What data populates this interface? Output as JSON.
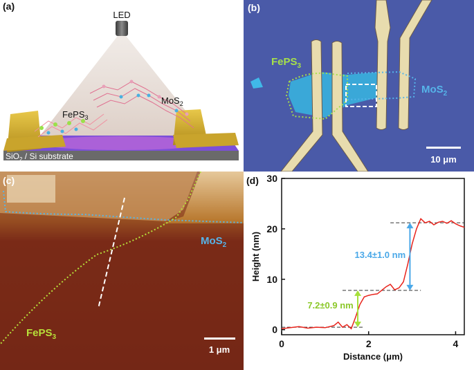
{
  "panel_a": {
    "label": "(a)",
    "led_label": "LED",
    "fepS3_prefix": "FePS",
    "fepS3_sub": "3",
    "mos2_prefix": "MoS",
    "mos2_sub": "2",
    "substrate_prefix": "SiO",
    "substrate_sub": "2",
    "substrate_suffix": " / Si substrate"
  },
  "panel_b": {
    "label": "(b)",
    "fepS3_prefix": "FePS",
    "fepS3_sub": "3",
    "mos2_prefix": "MoS",
    "mos2_sub": "2",
    "scale_label": "10 μm",
    "colors": {
      "background": "#4a5aa8",
      "electrode": "#e8dcae",
      "fepS3_outline": "#a6e04a",
      "mos2_outline": "#56b4e9"
    }
  },
  "panel_c": {
    "label": "(c)",
    "mos2_prefix": "MoS",
    "mos2_sub": "2",
    "fepS3_prefix": "FePS",
    "fepS3_sub": "3",
    "scale_label": "1 μm"
  },
  "panel_d": {
    "label": "(d)",
    "xlabel": "Distance (μm)",
    "ylabel": "Height (nm)",
    "annotation_upper": "13.4±1.0 nm",
    "annotation_lower": "7.2±0.9 nm",
    "colors": {
      "line": "#e8231b",
      "upper_arrow": "#4aa8e8",
      "lower_arrow": "#a6e03a"
    }
  },
  "chart_data": {
    "type": "line",
    "xlabel": "Distance (μm)",
    "ylabel": "Height (nm)",
    "xlim": [
      0,
      4.2
    ],
    "ylim": [
      -1,
      30
    ],
    "xticks": [
      0,
      2,
      4
    ],
    "yticks": [
      0,
      10,
      20,
      30
    ],
    "series": [
      {
        "x": [
          0,
          0.2,
          0.4,
          0.6,
          0.8,
          1.0,
          1.2,
          1.3,
          1.4,
          1.5,
          1.6,
          1.7,
          1.8,
          1.9,
          2.0,
          2.1,
          2.2,
          2.3,
          2.4,
          2.5,
          2.6,
          2.7,
          2.8,
          2.9,
          3.0,
          3.1,
          3.2,
          3.3,
          3.4,
          3.5,
          3.6,
          3.7,
          3.8,
          3.9,
          4.0,
          4.1,
          4.2
        ],
        "y": [
          0.2,
          0.4,
          0.6,
          0.3,
          0.5,
          0.4,
          0.8,
          1.5,
          0.5,
          1.0,
          0.2,
          2.5,
          5.0,
          6.5,
          6.8,
          7.0,
          7.1,
          7.8,
          8.5,
          9.0,
          7.9,
          8.3,
          9.5,
          13.0,
          17.0,
          20.0,
          22.0,
          21.2,
          21.5,
          20.8,
          21.3,
          21.5,
          21.1,
          21.6,
          21.0,
          20.6,
          20.3
        ]
      }
    ],
    "reference_levels": [
      0.5,
      7.8,
      21.2
    ],
    "annotations": [
      "13.4±1.0 nm",
      "7.2±0.9 nm"
    ]
  }
}
